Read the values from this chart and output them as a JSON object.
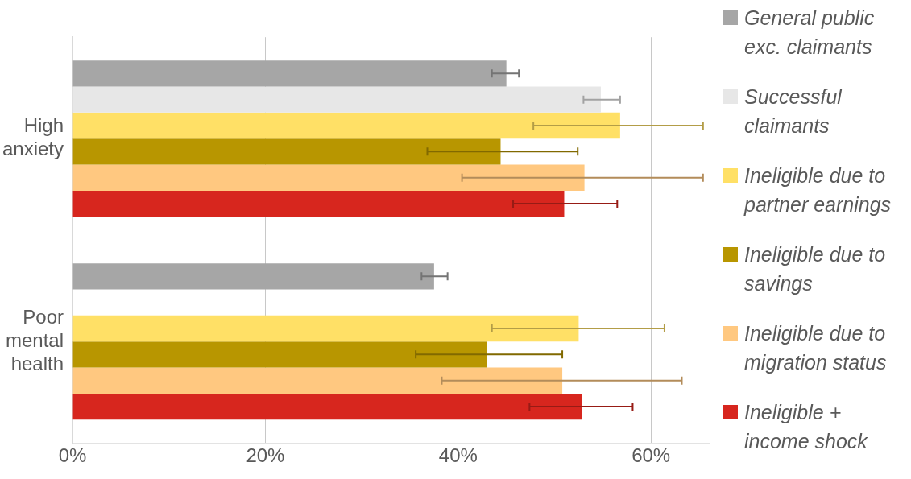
{
  "chart_data": {
    "type": "bar",
    "orientation": "horizontal",
    "categories": [
      "High anxiety",
      "Poor mental health"
    ],
    "series": [
      {
        "name": "General public exc. claimants",
        "color": "#a6a6a6",
        "values": [
          45,
          37.5
        ],
        "errors": [
          [
            43.5,
            46.3
          ],
          [
            36.2,
            38.9
          ]
        ]
      },
      {
        "name": "Successful claimants",
        "color": "#e7e7e7",
        "values": [
          54.8,
          null
        ],
        "errors": [
          [
            53,
            56.8
          ],
          null
        ]
      },
      {
        "name": "Ineligible due to partner earnings",
        "color": "#ffe066",
        "values": [
          56.8,
          52.5
        ],
        "errors": [
          [
            47.8,
            65.4
          ],
          [
            43.5,
            61.4
          ]
        ]
      },
      {
        "name": "Ineligible due to savings",
        "color": "#b89600",
        "values": [
          44.4,
          43
        ],
        "errors": [
          [
            36.8,
            52.4
          ],
          [
            35.6,
            50.8
          ]
        ]
      },
      {
        "name": "Ineligible due to migration status",
        "color": "#ffc880",
        "values": [
          53.1,
          50.8
        ],
        "errors": [
          [
            40.4,
            65.4
          ],
          [
            38.3,
            63.2
          ]
        ]
      },
      {
        "name": "Ineligible + income shock",
        "color": "#d7261e",
        "values": [
          51,
          52.8
        ],
        "errors": [
          [
            45.7,
            56.5
          ],
          [
            47.4,
            58.1
          ]
        ]
      }
    ],
    "xlim": [
      0,
      66
    ],
    "xticks": [
      {
        "value": 0,
        "label": "0%"
      },
      {
        "value": 20,
        "label": "20%"
      },
      {
        "value": 40,
        "label": "40%"
      },
      {
        "value": 60,
        "label": "60%"
      }
    ],
    "grid": "x",
    "legend": "right"
  }
}
